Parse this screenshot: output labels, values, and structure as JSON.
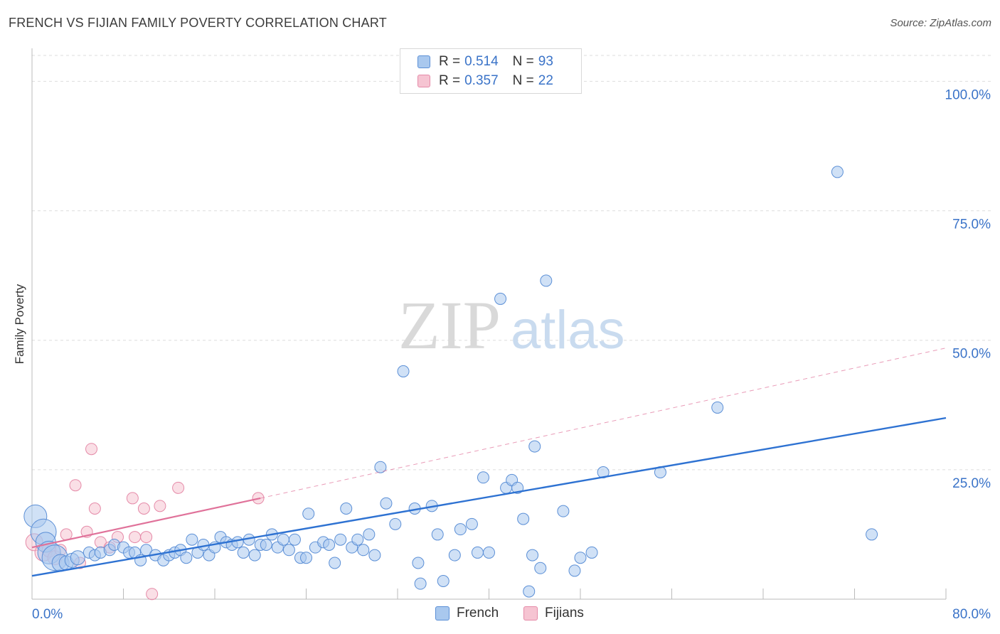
{
  "title": "FRENCH VS FIJIAN FAMILY POVERTY CORRELATION CHART",
  "source": "Source: ZipAtlas.com",
  "watermark": {
    "zip": "ZIP",
    "atlas": "atlas"
  },
  "colors": {
    "french_fill": "#a9c8ee",
    "french_stroke": "#5b8fd6",
    "french_line": "#2e72d2",
    "fijian_fill": "#f6c4d2",
    "fijian_stroke": "#e58aa8",
    "fijian_line": "#e0729a",
    "axis_text": "#3a73c8",
    "grid": "#dddddd"
  },
  "legend": {
    "rows": [
      {
        "r_label": "R =",
        "r_value": "0.514",
        "n_label": "N =",
        "n_value": "93"
      },
      {
        "r_label": "R =",
        "r_value": "0.357",
        "n_label": "N =",
        "n_value": "22"
      }
    ]
  },
  "chart_data": {
    "type": "scatter",
    "title": "FRENCH VS FIJIAN FAMILY POVERTY CORRELATION CHART",
    "ylabel": "Family Poverty",
    "xlabel": "",
    "xlim": [
      0,
      80
    ],
    "ylim": [
      0,
      105
    ],
    "x_tick_labels": [
      "0.0%",
      "80.0%"
    ],
    "y_tick_labels": [
      "25.0%",
      "50.0%",
      "75.0%",
      "100.0%"
    ],
    "y_ticks": [
      25,
      50,
      75,
      100
    ],
    "grid": true,
    "legend_position": "top-center",
    "series": [
      {
        "name": "French",
        "trend": {
          "x0": 0,
          "y0": 4.5,
          "x1": 80,
          "y1": 35
        },
        "points": [
          [
            0.3,
            16,
            16
          ],
          [
            1,
            13,
            18
          ],
          [
            1.2,
            11,
            14
          ],
          [
            1.5,
            9,
            16
          ],
          [
            2,
            8,
            18
          ],
          [
            2.5,
            7,
            12
          ],
          [
            3,
            7,
            10
          ],
          [
            3.5,
            7.5,
            10
          ],
          [
            4,
            8,
            10
          ],
          [
            5,
            9,
            8
          ],
          [
            5.5,
            8.5,
            8
          ],
          [
            6,
            9,
            8
          ],
          [
            6.8,
            9.5,
            8
          ],
          [
            7.2,
            10.5,
            8
          ],
          [
            8,
            10,
            8
          ],
          [
            8.5,
            9,
            8
          ],
          [
            9,
            9,
            8
          ],
          [
            9.5,
            7.5,
            8
          ],
          [
            10,
            9.5,
            8
          ],
          [
            10.8,
            8.5,
            8
          ],
          [
            11.5,
            7.5,
            8
          ],
          [
            12,
            8.5,
            8
          ],
          [
            12.5,
            9,
            8
          ],
          [
            13,
            9.5,
            8
          ],
          [
            13.5,
            8,
            8
          ],
          [
            14,
            11.5,
            8
          ],
          [
            14.5,
            9,
            8
          ],
          [
            15,
            10.5,
            8
          ],
          [
            15.5,
            8.5,
            8
          ],
          [
            16,
            10,
            8
          ],
          [
            16.5,
            12,
            8
          ],
          [
            17,
            11,
            8
          ],
          [
            17.5,
            10.5,
            8
          ],
          [
            18,
            11,
            8
          ],
          [
            18.5,
            9,
            8
          ],
          [
            19,
            11.5,
            8
          ],
          [
            19.5,
            8.5,
            8
          ],
          [
            20,
            10.5,
            8
          ],
          [
            20.5,
            10.5,
            8
          ],
          [
            21,
            12.5,
            8
          ],
          [
            21.5,
            10,
            8
          ],
          [
            22,
            11.5,
            8
          ],
          [
            22.5,
            9.5,
            8
          ],
          [
            23,
            11.5,
            8
          ],
          [
            23.5,
            8,
            8
          ],
          [
            24,
            8,
            8
          ],
          [
            24.2,
            16.5,
            8
          ],
          [
            24.8,
            10,
            8
          ],
          [
            25.5,
            11,
            8
          ],
          [
            26,
            10.5,
            8
          ],
          [
            26.5,
            7,
            8
          ],
          [
            27,
            11.5,
            8
          ],
          [
            27.5,
            17.5,
            8
          ],
          [
            28,
            10,
            8
          ],
          [
            28.5,
            11.5,
            8
          ],
          [
            29,
            9.5,
            8
          ],
          [
            29.5,
            12.5,
            8
          ],
          [
            30,
            8.5,
            8
          ],
          [
            30.5,
            25.5,
            8
          ],
          [
            31,
            18.5,
            8
          ],
          [
            31.8,
            14.5,
            8
          ],
          [
            32.5,
            44,
            8
          ],
          [
            33.5,
            17.5,
            8
          ],
          [
            33.8,
            7,
            8
          ],
          [
            34,
            3,
            8
          ],
          [
            35,
            18,
            8
          ],
          [
            35.5,
            12.5,
            8
          ],
          [
            36,
            3.5,
            8
          ],
          [
            37,
            8.5,
            8
          ],
          [
            37.5,
            13.5,
            8
          ],
          [
            38.5,
            14.5,
            8
          ],
          [
            39,
            9,
            8
          ],
          [
            39.5,
            23.5,
            8
          ],
          [
            40,
            9,
            8
          ],
          [
            41,
            58,
            8
          ],
          [
            41.5,
            21.5,
            8
          ],
          [
            42,
            23,
            8
          ],
          [
            42.5,
            21.5,
            8
          ],
          [
            43,
            15.5,
            8
          ],
          [
            43.5,
            1.5,
            8
          ],
          [
            43.8,
            8.5,
            8
          ],
          [
            44,
            29.5,
            8
          ],
          [
            44.5,
            6,
            8
          ],
          [
            45,
            61.5,
            8
          ],
          [
            46.5,
            17,
            8
          ],
          [
            47.5,
            5.5,
            8
          ],
          [
            48,
            8,
            8
          ],
          [
            49,
            9,
            8
          ],
          [
            50,
            24.5,
            8
          ],
          [
            55,
            24.5,
            8
          ],
          [
            60,
            37,
            8
          ],
          [
            70.5,
            82.5,
            8
          ],
          [
            73.5,
            12.5,
            8
          ]
        ]
      },
      {
        "name": "Fijians",
        "trend": {
          "x0": 0,
          "y0": 10,
          "x1": 20,
          "y1": 19.5,
          "dash_x1": 80,
          "dash_y1": 48.5
        },
        "points": [
          [
            0.2,
            11,
            12
          ],
          [
            1,
            9,
            12
          ],
          [
            1.5,
            9.5,
            10
          ],
          [
            2,
            8,
            10
          ],
          [
            2.5,
            9.5,
            8
          ],
          [
            3,
            12.5,
            8
          ],
          [
            3.8,
            22,
            8
          ],
          [
            4.2,
            7,
            8
          ],
          [
            4.8,
            13,
            8
          ],
          [
            5.2,
            29,
            8
          ],
          [
            5.5,
            17.5,
            8
          ],
          [
            6,
            11,
            8
          ],
          [
            6.8,
            10,
            8
          ],
          [
            7.5,
            12,
            8
          ],
          [
            8.8,
            19.5,
            8
          ],
          [
            9,
            12,
            8
          ],
          [
            9.8,
            17.5,
            8
          ],
          [
            10,
            12,
            8
          ],
          [
            10.5,
            1,
            8
          ],
          [
            11.2,
            18,
            8
          ],
          [
            12.8,
            21.5,
            8
          ],
          [
            19.8,
            19.5,
            8
          ]
        ]
      }
    ]
  },
  "bottom_legend": {
    "french": "French",
    "fijians": "Fijians"
  }
}
